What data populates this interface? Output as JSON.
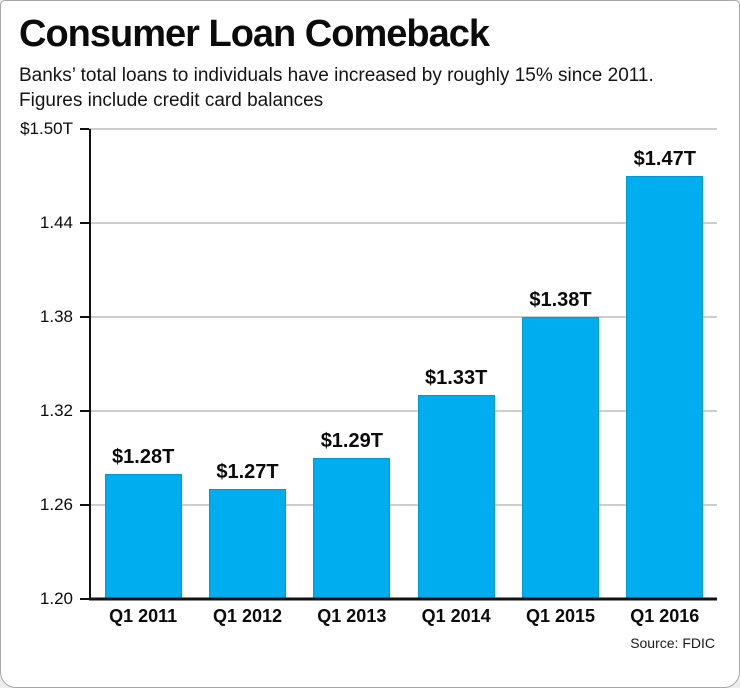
{
  "header": {
    "title": "Consumer Loan Comeback",
    "subtitle": "Banks’ total loans to individuals have increased by roughly 15% since 2011. Figures include credit card balances"
  },
  "source": "Source: FDIC",
  "chart_data": {
    "type": "bar",
    "title": "Consumer Loan Comeback",
    "xlabel": "",
    "ylabel": "",
    "categories": [
      "Q1 2011",
      "Q1 2012",
      "Q1 2013",
      "Q1 2014",
      "Q1 2015",
      "Q1 2016"
    ],
    "values": [
      1.28,
      1.27,
      1.29,
      1.33,
      1.38,
      1.47
    ],
    "value_labels": [
      "$1.28T",
      "$1.27T",
      "$1.29T",
      "$1.33T",
      "$1.38T",
      "$1.47T"
    ],
    "ylim": [
      1.2,
      1.5
    ],
    "yticks": [
      1.5,
      1.44,
      1.38,
      1.32,
      1.26,
      1.2
    ],
    "ytick_labels": [
      "$1.50T",
      "1.44",
      "1.38",
      "1.32",
      "1.26",
      "1.20"
    ],
    "bar_color": "#00AEEF",
    "grid": true,
    "legend": "none"
  }
}
